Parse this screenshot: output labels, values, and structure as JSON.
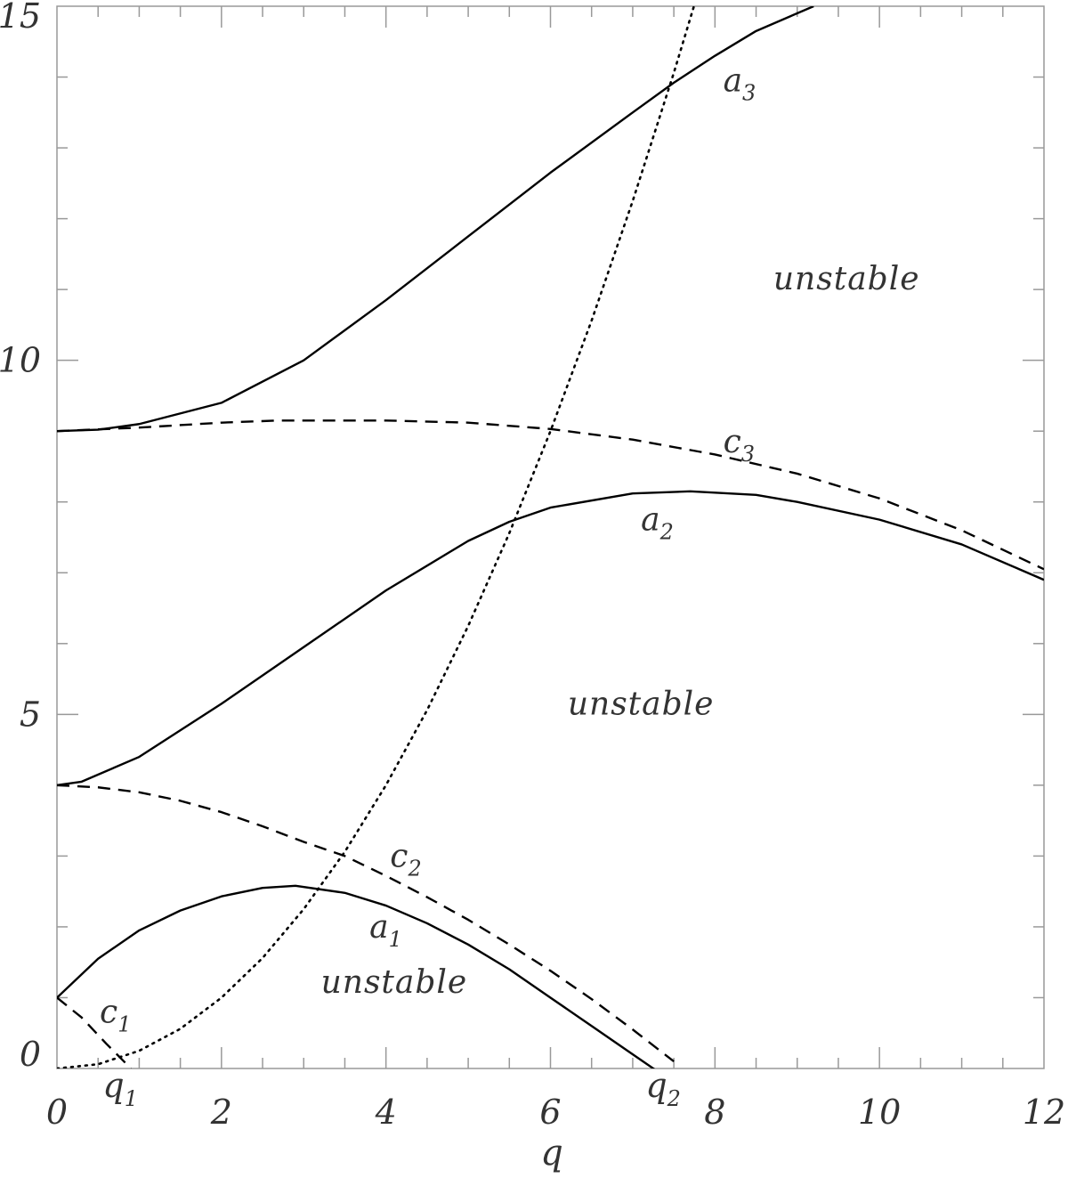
{
  "chart_data": {
    "type": "line",
    "title": "",
    "xlabel": "q",
    "ylabel": "",
    "xlim": [
      0,
      12
    ],
    "ylim": [
      0,
      15
    ],
    "x_ticks": [
      {
        "value": 0,
        "label": "0"
      },
      {
        "value": 2,
        "label": "2"
      },
      {
        "value": 4,
        "label": "4"
      },
      {
        "value": 6,
        "label": "6"
      },
      {
        "value": 8,
        "label": "8"
      },
      {
        "value": 10,
        "label": "10"
      },
      {
        "value": 12,
        "label": "12"
      }
    ],
    "x_special_ticks": [
      {
        "value": 0.9,
        "label": "q",
        "sub": "1"
      },
      {
        "value": 7.5,
        "label": "q",
        "sub": "2"
      }
    ],
    "y_ticks": [
      {
        "value": 0,
        "label": "0"
      },
      {
        "value": 5,
        "label": "5"
      },
      {
        "value": 10,
        "label": "10"
      },
      {
        "value": 15,
        "label": "15"
      }
    ],
    "grid": false,
    "colors": {
      "line": "#000000",
      "text": "#333333",
      "frame": "#999999"
    },
    "series": [
      {
        "label": "a",
        "sub": "1",
        "style": "solid",
        "x": [
          0,
          0.5,
          1,
          1.5,
          2,
          2.5,
          2.9,
          3.5,
          4,
          4.5,
          5,
          5.5,
          6,
          6.5,
          7,
          7.5
        ],
        "y": [
          1.0,
          1.55,
          1.95,
          2.23,
          2.43,
          2.55,
          2.58,
          2.48,
          2.3,
          2.05,
          1.75,
          1.4,
          1.0,
          0.6,
          0.2,
          -0.2
        ]
      },
      {
        "label": "c",
        "sub": "1",
        "style": "dashed",
        "x": [
          0,
          0.3,
          0.6,
          0.9
        ],
        "y": [
          1.0,
          0.72,
          0.35,
          0.0
        ]
      },
      {
        "label": "c",
        "sub": "2",
        "style": "dashed",
        "x": [
          0,
          0.5,
          1,
          1.5,
          2,
          2.5,
          3,
          3.5,
          4,
          4.5,
          5,
          5.5,
          6,
          6.5,
          7,
          7.5
        ],
        "y": [
          4.0,
          3.97,
          3.9,
          3.78,
          3.62,
          3.42,
          3.2,
          3.0,
          2.72,
          2.42,
          2.1,
          1.75,
          1.38,
          0.98,
          0.55,
          0.1
        ]
      },
      {
        "label": "a",
        "sub": "2",
        "style": "solid",
        "x": [
          0,
          0.3,
          1,
          2,
          3,
          4,
          5,
          5.5,
          6,
          7,
          7.7,
          8.5,
          9,
          10,
          11,
          12
        ],
        "y": [
          4.0,
          4.05,
          4.4,
          5.15,
          5.95,
          6.75,
          7.45,
          7.72,
          7.92,
          8.12,
          8.15,
          8.1,
          8.0,
          7.75,
          7.4,
          6.9
        ]
      },
      {
        "label": "c",
        "sub": "3",
        "style": "dashed",
        "x": [
          0,
          1,
          2,
          2.7,
          4,
          5,
          6,
          7,
          8,
          9,
          10,
          11,
          12
        ],
        "y": [
          9.0,
          9.05,
          9.12,
          9.15,
          9.15,
          9.12,
          9.03,
          8.88,
          8.67,
          8.4,
          8.05,
          7.6,
          7.05
        ]
      },
      {
        "label": "a",
        "sub": "3",
        "style": "solid",
        "x": [
          0,
          0.5,
          1,
          2,
          3,
          4,
          5,
          6,
          7,
          7.5,
          8,
          8.5,
          9.2
        ],
        "y": [
          9.0,
          9.02,
          9.1,
          9.4,
          10.0,
          10.85,
          11.75,
          12.65,
          13.5,
          13.92,
          14.3,
          14.65,
          15.0
        ]
      },
      {
        "label": "",
        "sub": "",
        "style": "dotted",
        "x": [
          0,
          0.5,
          1,
          1.5,
          2,
          2.5,
          3,
          3.5,
          4,
          4.5,
          5,
          5.5,
          6,
          6.5,
          7,
          7.5,
          7.9
        ],
        "y": [
          0,
          0.06,
          0.25,
          0.56,
          1.0,
          1.56,
          2.25,
          3.06,
          4.0,
          5.06,
          6.25,
          7.56,
          9.0,
          10.56,
          12.25,
          14.06,
          15.6
        ]
      }
    ],
    "curve_labels": [
      {
        "text": "a",
        "sub": "3",
        "x": 8.1,
        "y": 13.8
      },
      {
        "text": "c",
        "sub": "3",
        "x": 8.1,
        "y": 8.7
      },
      {
        "text": "a",
        "sub": "2",
        "x": 7.1,
        "y": 7.6
      },
      {
        "text": "c",
        "sub": "2",
        "x": 4.05,
        "y": 2.85
      },
      {
        "text": "a",
        "sub": "1",
        "x": 3.8,
        "y": 1.85
      },
      {
        "text": "c",
        "sub": "1",
        "x": 0.52,
        "y": 0.65
      }
    ],
    "region_labels": [
      {
        "text": "unstable",
        "x": 9.6,
        "y": 11.0
      },
      {
        "text": "unstable",
        "x": 7.1,
        "y": 5.0
      },
      {
        "text": "unstable",
        "x": 4.1,
        "y": 1.07
      }
    ]
  }
}
